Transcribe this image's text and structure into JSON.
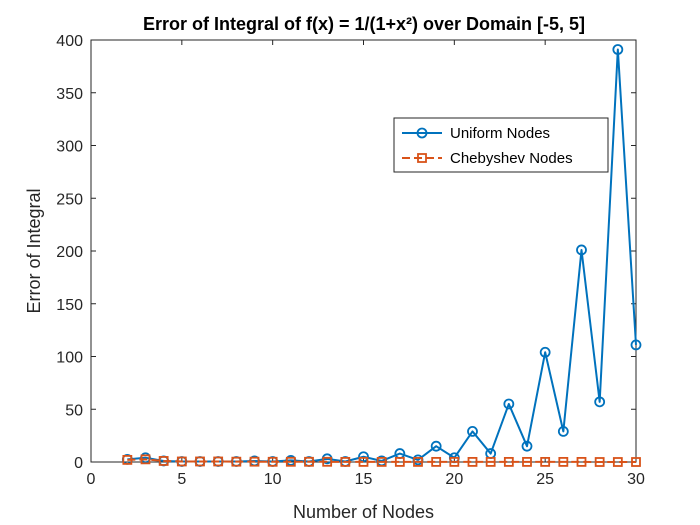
{
  "chart_data": {
    "type": "line",
    "title": "Error of Integral of f(x) = 1/(1+x²) over Domain [-5, 5]",
    "xlabel": "Number of Nodes",
    "ylabel": "Error of Integral",
    "xlim": [
      0,
      30
    ],
    "ylim": [
      0,
      400
    ],
    "xticks": [
      0,
      5,
      10,
      15,
      20,
      25,
      30
    ],
    "yticks": [
      0,
      50,
      100,
      150,
      200,
      250,
      300,
      350,
      400
    ],
    "grid": false,
    "legend_position": "upper-right",
    "x": [
      2,
      3,
      4,
      5,
      6,
      7,
      8,
      9,
      10,
      11,
      12,
      13,
      14,
      15,
      16,
      17,
      18,
      19,
      20,
      21,
      22,
      23,
      24,
      25,
      26,
      27,
      28,
      29,
      30
    ],
    "series": [
      {
        "name": "Uniform Nodes",
        "color": "#0072BD",
        "marker": "circle",
        "linestyle": "solid",
        "values": [
          2.5,
          4,
          1,
          0.5,
          0.5,
          0.5,
          0.5,
          1,
          0.5,
          1.5,
          0.5,
          3,
          0.5,
          5,
          1,
          8,
          2,
          15,
          4,
          29,
          8,
          55,
          15,
          104,
          29,
          201,
          57,
          391,
          111
        ]
      },
      {
        "name": "Chebyshev Nodes",
        "color": "#D95319",
        "marker": "square",
        "linestyle": "dashed",
        "values": [
          2,
          2.5,
          1,
          0.5,
          0.5,
          0.5,
          0.3,
          0.3,
          0.2,
          0.2,
          0.2,
          0.2,
          0.1,
          0.1,
          0.1,
          0.1,
          0.1,
          0.1,
          0.1,
          0.1,
          0.1,
          0.1,
          0.1,
          0.1,
          0.1,
          0.1,
          0,
          0,
          0
        ]
      }
    ]
  }
}
